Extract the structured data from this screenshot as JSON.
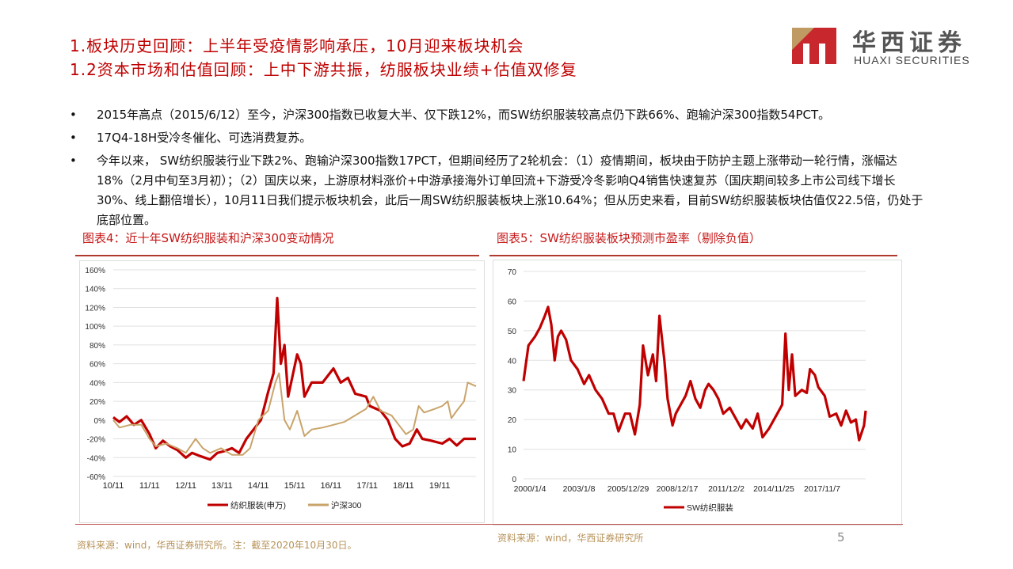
{
  "header": {
    "title_line1": "1.板块历史回顾：上半年受疫情影响承压，10月迎来板块机会",
    "title_line2": "1.2资本市场和估值回顾：上中下游共振，纺服板块业绩+估值双修复",
    "logo_cn": "华西证券",
    "logo_en": "HUAXI SECURITIES"
  },
  "bullets": [
    "2015年高点（2015/6/12）至今，沪深300指数已收复大半、仅下跌12%，而SW纺织服装较高点仍下跌66%、跑输沪深300指数54PCT。",
    "17Q4-18H受冷冬催化、可选消费复苏。",
    "今年以来， SW纺织服装行业下跌2%、跑输沪深300指数17PCT，但期间经历了2轮机会：（1）疫情期间，板块由于防护主题上涨带动一轮行情，涨幅达18%（2月中旬至3月初）；（2）国庆以来，上游原材料涨价+中游承接海外订单回流+下游受冷冬影响Q4销售快速复苏（国庆期间较多上市公司线下增长30%、线上翻倍增长），10月11日我们提示板块机会，此后一周SW纺织服装板块上涨10.64%；但从历史来看，目前SW纺织服装板块估值仅22.5倍，仍处于底部位置。"
  ],
  "footer": {
    "source_left": "资料来源：wind，华西证券研究所。注：截至2020年10月30日。",
    "source_right": "资料来源：wind，华西证券研究所",
    "page": "5"
  },
  "colors": {
    "red": "#c00000",
    "tan": "#c9a46b",
    "grid": "#e0e0e0"
  },
  "chart_data": [
    {
      "type": "line",
      "title": "图表4：近十年SW纺织服装和沪深300变动情况",
      "ylabel": "",
      "xlabel": "",
      "ylim": [
        -60,
        160
      ],
      "yticks": [
        "160%",
        "140%",
        "120%",
        "100%",
        "80%",
        "60%",
        "40%",
        "20%",
        "0%",
        "-20%",
        "-40%",
        "-60%"
      ],
      "ytick_values": [
        160,
        140,
        120,
        100,
        80,
        60,
        40,
        20,
        0,
        -20,
        -40,
        -60
      ],
      "xticks": [
        "10/11",
        "11/11",
        "12/11",
        "13/11",
        "14/11",
        "15/11",
        "16/11",
        "17/11",
        "18/11",
        "19/11"
      ],
      "xtick_values": [
        2010.83,
        2011.83,
        2012.83,
        2013.83,
        2014.83,
        2015.83,
        2016.83,
        2017.83,
        2018.83,
        2019.83
      ],
      "xlim": [
        2010.83,
        2020.83
      ],
      "legend_position": "bottom",
      "grid": true,
      "series": [
        {
          "name": "纺织服装(申万)",
          "color": "#c00000",
          "points": [
            [
              2010.83,
              3
            ],
            [
              2011.0,
              -2
            ],
            [
              2011.2,
              4
            ],
            [
              2011.4,
              -5
            ],
            [
              2011.6,
              0
            ],
            [
              2011.83,
              -15
            ],
            [
              2012.0,
              -30
            ],
            [
              2012.2,
              -22
            ],
            [
              2012.4,
              -28
            ],
            [
              2012.6,
              -32
            ],
            [
              2012.83,
              -40
            ],
            [
              2013.0,
              -35
            ],
            [
              2013.2,
              -38
            ],
            [
              2013.5,
              -42
            ],
            [
              2013.7,
              -35
            ],
            [
              2013.9,
              -33
            ],
            [
              2014.1,
              -30
            ],
            [
              2014.3,
              -35
            ],
            [
              2014.5,
              -20
            ],
            [
              2014.7,
              -10
            ],
            [
              2014.9,
              0
            ],
            [
              2015.1,
              30
            ],
            [
              2015.25,
              50
            ],
            [
              2015.35,
              130
            ],
            [
              2015.45,
              60
            ],
            [
              2015.55,
              80
            ],
            [
              2015.65,
              25
            ],
            [
              2015.9,
              70
            ],
            [
              2016.0,
              60
            ],
            [
              2016.1,
              25
            ],
            [
              2016.3,
              40
            ],
            [
              2016.6,
              40
            ],
            [
              2016.9,
              55
            ],
            [
              2017.1,
              40
            ],
            [
              2017.3,
              45
            ],
            [
              2017.5,
              28
            ],
            [
              2017.8,
              25
            ],
            [
              2017.9,
              15
            ],
            [
              2018.2,
              10
            ],
            [
              2018.4,
              0
            ],
            [
              2018.6,
              -20
            ],
            [
              2018.8,
              -28
            ],
            [
              2019.0,
              -25
            ],
            [
              2019.2,
              -10
            ],
            [
              2019.35,
              -20
            ],
            [
              2019.6,
              -22
            ],
            [
              2019.9,
              -25
            ],
            [
              2020.1,
              -20
            ],
            [
              2020.3,
              -27
            ],
            [
              2020.5,
              -20
            ],
            [
              2020.83,
              -20
            ]
          ]
        },
        {
          "name": "沪深300",
          "color": "#c9a46b",
          "points": [
            [
              2010.83,
              0
            ],
            [
              2011.0,
              -8
            ],
            [
              2011.3,
              -5
            ],
            [
              2011.6,
              -5
            ],
            [
              2011.83,
              -20
            ],
            [
              2012.0,
              -28
            ],
            [
              2012.3,
              -25
            ],
            [
              2012.6,
              -30
            ],
            [
              2012.83,
              -35
            ],
            [
              2013.1,
              -20
            ],
            [
              2013.3,
              -30
            ],
            [
              2013.5,
              -35
            ],
            [
              2013.8,
              -30
            ],
            [
              2014.1,
              -37
            ],
            [
              2014.4,
              -37
            ],
            [
              2014.6,
              -30
            ],
            [
              2014.83,
              0
            ],
            [
              2015.1,
              10
            ],
            [
              2015.3,
              40
            ],
            [
              2015.4,
              50
            ],
            [
              2015.55,
              0
            ],
            [
              2015.7,
              -10
            ],
            [
              2015.9,
              10
            ],
            [
              2016.1,
              -17
            ],
            [
              2016.3,
              -10
            ],
            [
              2016.6,
              -8
            ],
            [
              2016.9,
              -5
            ],
            [
              2017.2,
              -2
            ],
            [
              2017.5,
              5
            ],
            [
              2017.8,
              12
            ],
            [
              2018.0,
              25
            ],
            [
              2018.2,
              10
            ],
            [
              2018.5,
              5
            ],
            [
              2018.7,
              -5
            ],
            [
              2018.9,
              -15
            ],
            [
              2019.1,
              -10
            ],
            [
              2019.25,
              15
            ],
            [
              2019.4,
              8
            ],
            [
              2019.7,
              12
            ],
            [
              2019.9,
              15
            ],
            [
              2020.05,
              20
            ],
            [
              2020.15,
              2
            ],
            [
              2020.3,
              10
            ],
            [
              2020.5,
              20
            ],
            [
              2020.6,
              40
            ],
            [
              2020.83,
              36
            ]
          ]
        }
      ]
    },
    {
      "type": "line",
      "title": "图表5：SW纺织服装板块预测市盈率（剔除负值）",
      "ylim": [
        0,
        70
      ],
      "yticks": [
        "70",
        "60",
        "50",
        "40",
        "30",
        "20",
        "10",
        "0"
      ],
      "ytick_values": [
        70,
        60,
        50,
        40,
        30,
        20,
        10,
        0
      ],
      "xticks": [
        "2000/1/4",
        "2003/1/8",
        "2005/12/29",
        "2008/12/17",
        "2011/12/2",
        "2014/11/25",
        "2017/11/7"
      ],
      "xtick_values": [
        2000.0,
        2003.0,
        2006.0,
        2009.0,
        2012.0,
        2014.9,
        2017.85
      ],
      "xlim": [
        2000.0,
        2020.9
      ],
      "legend_position": "bottom",
      "grid": true,
      "series": [
        {
          "name": "SW纺织服装",
          "color": "#c00000",
          "points": [
            [
              2000.0,
              33
            ],
            [
              2000.3,
              45
            ],
            [
              2000.7,
              48
            ],
            [
              2001.0,
              51
            ],
            [
              2001.3,
              55
            ],
            [
              2001.5,
              58
            ],
            [
              2001.7,
              52
            ],
            [
              2001.9,
              40
            ],
            [
              2002.1,
              48
            ],
            [
              2002.3,
              50
            ],
            [
              2002.6,
              47
            ],
            [
              2002.9,
              40
            ],
            [
              2003.3,
              37
            ],
            [
              2003.7,
              32
            ],
            [
              2004.0,
              35
            ],
            [
              2004.4,
              30
            ],
            [
              2004.8,
              27
            ],
            [
              2005.2,
              22
            ],
            [
              2005.5,
              22
            ],
            [
              2005.8,
              16
            ],
            [
              2006.2,
              22
            ],
            [
              2006.5,
              22
            ],
            [
              2006.8,
              15
            ],
            [
              2007.1,
              25
            ],
            [
              2007.3,
              45
            ],
            [
              2007.6,
              35
            ],
            [
              2007.9,
              42
            ],
            [
              2008.1,
              33
            ],
            [
              2008.3,
              55
            ],
            [
              2008.6,
              40
            ],
            [
              2008.8,
              27
            ],
            [
              2009.1,
              18
            ],
            [
              2009.3,
              22
            ],
            [
              2009.6,
              25
            ],
            [
              2009.9,
              28
            ],
            [
              2010.2,
              33
            ],
            [
              2010.5,
              27
            ],
            [
              2010.8,
              24
            ],
            [
              2011.1,
              30
            ],
            [
              2011.3,
              32
            ],
            [
              2011.6,
              30
            ],
            [
              2011.9,
              27
            ],
            [
              2012.2,
              22
            ],
            [
              2012.6,
              24
            ],
            [
              2013.0,
              20
            ],
            [
              2013.3,
              17
            ],
            [
              2013.6,
              20
            ],
            [
              2014.0,
              17
            ],
            [
              2014.3,
              22
            ],
            [
              2014.6,
              14
            ],
            [
              2015.0,
              17
            ],
            [
              2015.5,
              22
            ],
            [
              2015.8,
              25
            ],
            [
              2016.0,
              49
            ],
            [
              2016.2,
              30
            ],
            [
              2016.4,
              42
            ],
            [
              2016.6,
              28
            ],
            [
              2017.0,
              30
            ],
            [
              2017.3,
              29
            ],
            [
              2017.5,
              37
            ],
            [
              2017.8,
              35
            ],
            [
              2018.0,
              31
            ],
            [
              2018.4,
              28
            ],
            [
              2018.7,
              21
            ],
            [
              2019.1,
              22
            ],
            [
              2019.4,
              18
            ],
            [
              2019.7,
              23
            ],
            [
              2020.0,
              19
            ],
            [
              2020.3,
              20
            ],
            [
              2020.5,
              13
            ],
            [
              2020.8,
              18
            ],
            [
              2020.9,
              23
            ]
          ]
        }
      ]
    }
  ]
}
